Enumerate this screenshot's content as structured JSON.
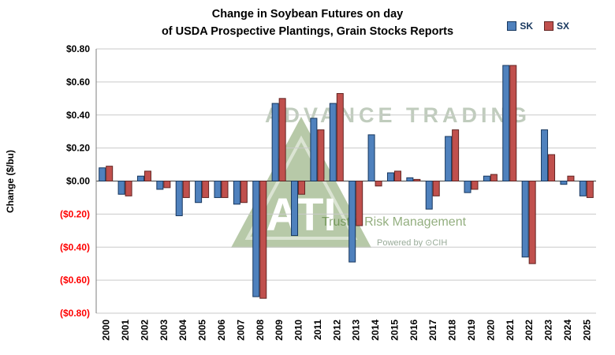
{
  "watermark": {
    "line1": "ADVANCE TRADING",
    "line2": "Trust + Risk Management",
    "line3": "Powered by ⊙CIH",
    "logo_icon": "advance-trading-triangle-logo",
    "logo_text": "ATI",
    "logo_color": "#557f33"
  },
  "chart_data": {
    "type": "bar",
    "title": "Change in Soybean Futures on day of USDA Prospective Plantings, Grain Stocks Reports",
    "title_lines": [
      "Change in Soybean Futures on day",
      "of USDA Prospective Plantings, Grain Stocks Reports"
    ],
    "ylabel": "Change ($/bu)",
    "xlabel": "",
    "categories": [
      "2000",
      "2001",
      "2002",
      "2003",
      "2004",
      "2005",
      "2006",
      "2007",
      "2008",
      "2009",
      "2010",
      "2011",
      "2012",
      "2013",
      "2014",
      "2015",
      "2016",
      "2017",
      "2018",
      "2019",
      "2020",
      "2021",
      "2022",
      "2023",
      "2024",
      "2025"
    ],
    "series": [
      {
        "name": "SK",
        "color": "#4F81BD",
        "border": "#17375E",
        "values": [
          0.08,
          -0.08,
          0.03,
          -0.05,
          -0.21,
          -0.13,
          -0.1,
          -0.14,
          -0.7,
          0.47,
          -0.33,
          0.38,
          0.47,
          -0.49,
          0.28,
          0.05,
          0.02,
          -0.17,
          0.27,
          -0.07,
          0.03,
          0.7,
          -0.46,
          0.31,
          -0.02,
          -0.09
        ]
      },
      {
        "name": "SX",
        "color": "#C0504D",
        "border": "#632523",
        "values": [
          0.09,
          -0.09,
          0.06,
          -0.04,
          -0.1,
          -0.1,
          -0.1,
          -0.13,
          -0.71,
          0.5,
          -0.08,
          0.31,
          0.53,
          -0.27,
          -0.03,
          0.06,
          0.01,
          -0.09,
          0.31,
          -0.05,
          0.04,
          0.7,
          -0.5,
          0.16,
          0.03,
          -0.1
        ]
      }
    ],
    "ylim": [
      -0.8,
      0.8
    ],
    "ytick_step": 0.2,
    "ytick_labels": [
      "$0.80",
      "$0.60",
      "$0.40",
      "$0.20",
      "$0.00",
      "($0.20)",
      "($0.40)",
      "($0.60)",
      "($0.80)"
    ],
    "negative_tick_color": "#FF0000",
    "positive_tick_color": "#000000",
    "grid": true,
    "legend_position": "top-right"
  }
}
